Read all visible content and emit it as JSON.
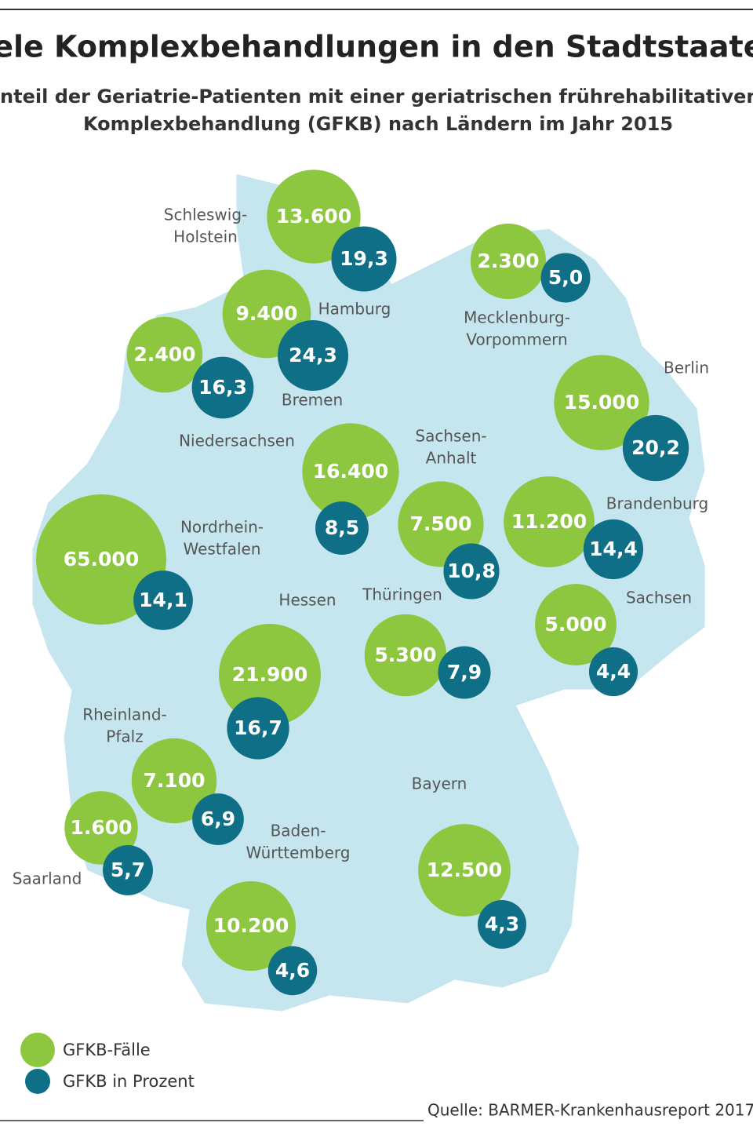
{
  "title": "Viele Komplexbehandlungen in den Stadtstaaten",
  "subtitle": [
    "Anteil der Geriatrie-Patienten mit einer geriatrischen frührehabilitativen",
    "Komplexbehandlung (GFKB) nach Ländern im Jahr 2015"
  ],
  "case_color": "#8dc63f",
  "percent_color": "#0e6f86",
  "states": [
    {
      "name": [
        "Schleswig-",
        "Holstein"
      ],
      "cases": 13600,
      "cases_label": "13.600",
      "percent": 19.3,
      "percent_label": "19,3"
    },
    {
      "name": [
        "Hamburg"
      ],
      "cases": 9400,
      "cases_label": "9.400",
      "percent": 24.3,
      "percent_label": "24,3"
    },
    {
      "name": [
        "Bremen"
      ],
      "cases": 2400,
      "cases_label": "2.400",
      "percent": 16.3,
      "percent_label": "16,3"
    },
    {
      "name": [
        "Mecklenburg-",
        "Vorpommern"
      ],
      "cases": 2300,
      "cases_label": "2.300",
      "percent": 5.0,
      "percent_label": "5,0"
    },
    {
      "name": [
        "Berlin"
      ],
      "cases": 15000,
      "cases_label": "15.000",
      "percent": 20.2,
      "percent_label": "20,2"
    },
    {
      "name": [
        "Niedersachsen"
      ],
      "cases": 16400,
      "cases_label": "16.400",
      "percent": 8.5,
      "percent_label": "8,5"
    },
    {
      "name": [
        "Sachsen-",
        "Anhalt"
      ],
      "cases": 7500,
      "cases_label": "7.500",
      "percent": 10.8,
      "percent_label": "10,8"
    },
    {
      "name": [
        "Brandenburg"
      ],
      "cases": 11200,
      "cases_label": "11.200",
      "percent": 14.4,
      "percent_label": "14,4"
    },
    {
      "name": [
        "Nordrhein-",
        "Westfalen"
      ],
      "cases": 65000,
      "cases_label": "65.000",
      "percent": 14.1,
      "percent_label": "14,1"
    },
    {
      "name": [
        "Hessen"
      ],
      "cases": 21900,
      "cases_label": "21.900",
      "percent": 16.7,
      "percent_label": "16,7"
    },
    {
      "name": [
        "Thüringen"
      ],
      "cases": 5300,
      "cases_label": "5.300",
      "percent": 7.9,
      "percent_label": "7,9"
    },
    {
      "name": [
        "Sachsen"
      ],
      "cases": 5000,
      "cases_label": "5.000",
      "percent": 4.4,
      "percent_label": "4,4"
    },
    {
      "name": [
        "Rheinland-",
        "Pfalz"
      ],
      "cases": 7100,
      "cases_label": "7.100",
      "percent": 6.9,
      "percent_label": "6,9"
    },
    {
      "name": [
        "Saarland"
      ],
      "cases": 1600,
      "cases_label": "1.600",
      "percent": 5.7,
      "percent_label": "5,7"
    },
    {
      "name": [
        "Baden-",
        "Württemberg"
      ],
      "cases": 10200,
      "cases_label": "10.200",
      "percent": 4.6,
      "percent_label": "4,6"
    },
    {
      "name": [
        "Bayern"
      ],
      "cases": 12500,
      "cases_label": "12.500",
      "percent": 4.3,
      "percent_label": "4,3"
    }
  ],
  "legend": [
    "GFKB-Fälle",
    "GFKB in Prozent"
  ],
  "source": "Quelle: BARMER-Krankenhausreport 2017"
}
